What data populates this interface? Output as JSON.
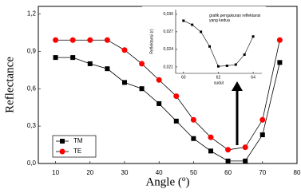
{
  "chart_data": [
    {
      "type": "line",
      "x_label": "Angle (º)",
      "y_label": "Reflectance",
      "x": [
        10,
        15,
        20,
        25,
        30,
        35,
        40,
        45,
        50,
        55,
        60,
        65,
        70,
        75
      ],
      "series": [
        {
          "name": "TM",
          "color": "#000000",
          "marker": "square",
          "values": [
            0.85,
            0.85,
            0.8,
            0.76,
            0.65,
            0.6,
            0.48,
            0.34,
            0.2,
            0.1,
            0.02,
            0.02,
            0.23,
            0.81
          ]
        },
        {
          "name": "TE",
          "color": "#ff0000",
          "marker": "circle",
          "values": [
            0.99,
            0.99,
            0.99,
            0.99,
            0.91,
            0.8,
            0.67,
            0.54,
            0.35,
            0.21,
            0.11,
            0.13,
            0.35,
            0.99
          ]
        }
      ],
      "xlim": [
        5,
        80
      ],
      "xticks": [
        10,
        20,
        30,
        40,
        50,
        60,
        70,
        80
      ],
      "ylim": [
        0,
        1.26
      ],
      "yticks": [
        {
          "value": 0,
          "label": "0,0"
        },
        {
          "value": 0.3,
          "label": "0,3"
        },
        {
          "value": 0.6,
          "label": "0,6"
        },
        {
          "value": 0.9,
          "label": "0,9"
        },
        {
          "value": 1.2,
          "label": "1,2"
        }
      ],
      "legend": "lower-left"
    },
    {
      "type": "line",
      "title": "grafik pengukuran reflektansi yang kedua",
      "x_label": "sudut",
      "y_label": "Reflektansi (r)",
      "x": [
        60,
        60.5,
        61,
        61.5,
        62,
        62.5,
        63,
        63.5,
        64
      ],
      "series": [
        {
          "color": "#000000",
          "marker": "square",
          "values": [
            0.0289,
            0.0282,
            0.027,
            0.0245,
            0.0211,
            0.0212,
            0.0214,
            0.0231,
            0.0262
          ]
        }
      ],
      "xlim": [
        59.55,
        64.5
      ],
      "xticks": [
        60,
        62,
        64
      ],
      "ylim": [
        0.0199,
        0.0308
      ],
      "yticks": [
        {
          "value": 0.021,
          "label": "0,021"
        },
        {
          "value": 0.024,
          "label": "0,024"
        },
        {
          "value": 0.027,
          "label": "0,027"
        },
        {
          "value": 0.03,
          "label": "0,030"
        }
      ]
    }
  ]
}
